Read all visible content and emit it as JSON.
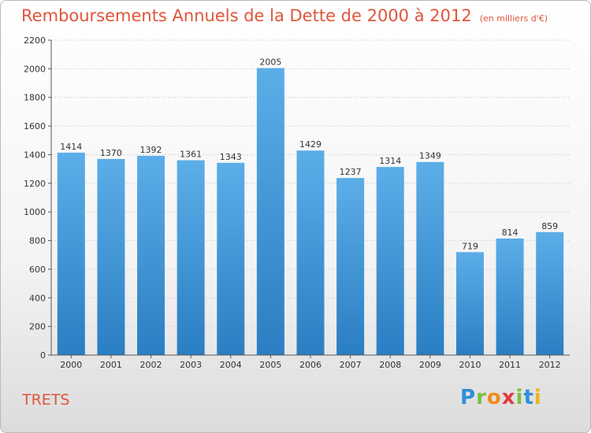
{
  "header": {
    "title": "Remboursements Annuels de la Dette de 2000 à 2012",
    "subtitle": "(en milliers d'€)"
  },
  "footer": {
    "town": "TRETS",
    "logo_letters": [
      {
        "ch": "P",
        "color": "#2e8fd8"
      },
      {
        "ch": "r",
        "color": "#7cbf3a"
      },
      {
        "ch": "o",
        "color": "#f08a1c"
      },
      {
        "ch": "x",
        "color": "#e23c3c"
      },
      {
        "ch": "i",
        "color": "#7cbf3a"
      },
      {
        "ch": "t",
        "color": "#2e8fd8"
      },
      {
        "ch": "i",
        "color": "#f0b41c"
      }
    ]
  },
  "chart_data": {
    "type": "bar",
    "categories": [
      "2000",
      "2001",
      "2002",
      "2003",
      "2004",
      "2005",
      "2006",
      "2007",
      "2008",
      "2009",
      "2010",
      "2011",
      "2012"
    ],
    "values": [
      1414,
      1370,
      1392,
      1361,
      1343,
      2005,
      1429,
      1237,
      1314,
      1349,
      719,
      814,
      859
    ],
    "ylim": [
      0,
      2200
    ],
    "yticks": [
      0,
      200,
      400,
      600,
      800,
      1000,
      1200,
      1400,
      1600,
      1800,
      2000,
      2200
    ],
    "grid": true,
    "bar_color_top": "#5caee8",
    "bar_color_bottom": "#2a7ec2"
  }
}
